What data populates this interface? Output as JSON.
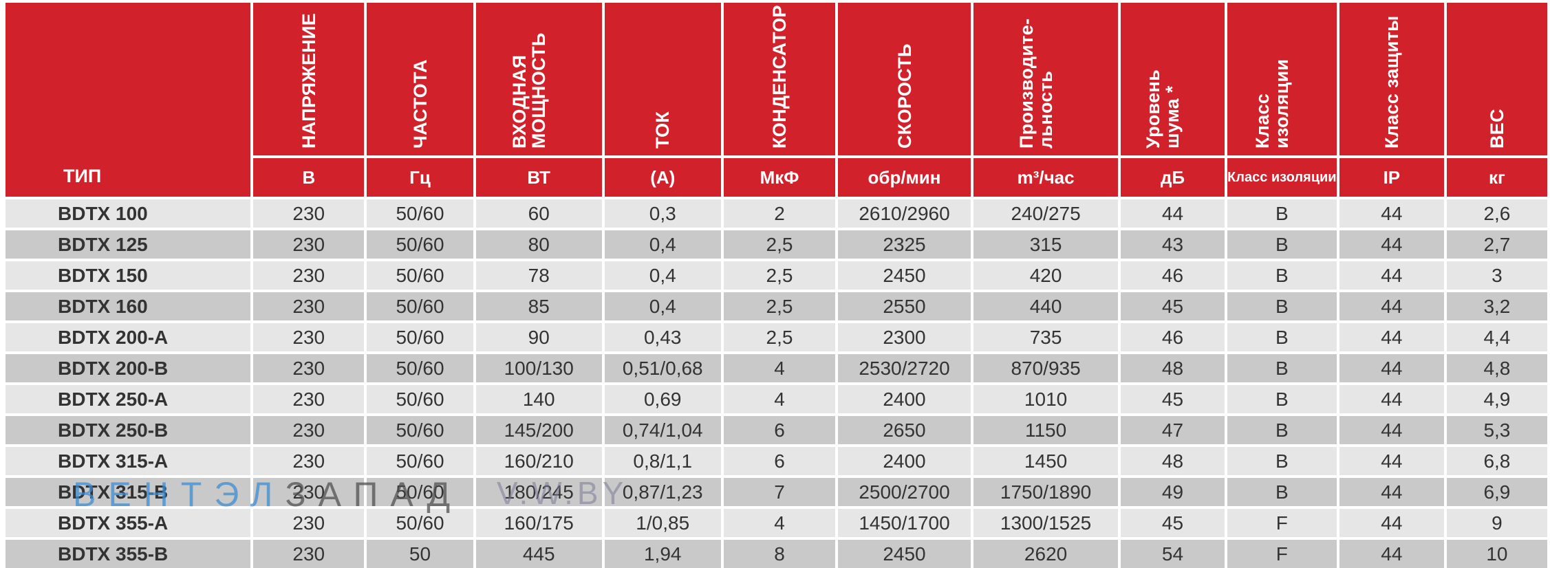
{
  "header": {
    "type_label": "ТИП",
    "columns": [
      {
        "title": "НАПРЯЖЕНИЕ",
        "unit": "В"
      },
      {
        "title": "ЧАСТОТА",
        "unit": "Гц"
      },
      {
        "title": "ВХОДНАЯ\nМОЩНОСТЬ",
        "unit": "ВТ"
      },
      {
        "title": "ТОК",
        "unit": "(А)"
      },
      {
        "title": "КОНДЕНСАТОР",
        "unit": "МкФ"
      },
      {
        "title": "СКОРОСТЬ",
        "unit": "обр/мин"
      },
      {
        "title": "Производите-\nльность",
        "unit": "m³/час"
      },
      {
        "title": "Уровень\nшума *",
        "unit": "дБ"
      },
      {
        "title": "Класс\nизоляции",
        "unit": "Класс изоляции"
      },
      {
        "title": "Класс защиты",
        "unit": "IP"
      },
      {
        "title": "ВЕС",
        "unit": "кг"
      }
    ]
  },
  "rows": [
    [
      "BDTX 100",
      "230",
      "50/60",
      "60",
      "0,3",
      "2",
      "2610/2960",
      "240/275",
      "44",
      "B",
      "44",
      "2,6"
    ],
    [
      "BDTX 125",
      "230",
      "50/60",
      "80",
      "0,4",
      "2,5",
      "2325",
      "315",
      "43",
      "B",
      "44",
      "2,7"
    ],
    [
      "BDTX 150",
      "230",
      "50/60",
      "78",
      "0,4",
      "2,5",
      "2450",
      "420",
      "46",
      "B",
      "44",
      "3"
    ],
    [
      "BDTX 160",
      "230",
      "50/60",
      "85",
      "0,4",
      "2,5",
      "2550",
      "440",
      "45",
      "B",
      "44",
      "3,2"
    ],
    [
      "BDTX 200-A",
      "230",
      "50/60",
      "90",
      "0,43",
      "2,5",
      "2300",
      "735",
      "46",
      "B",
      "44",
      "4,4"
    ],
    [
      "BDTX 200-B",
      "230",
      "50/60",
      "100/130",
      "0,51/0,68",
      "4",
      "2530/2720",
      "870/935",
      "48",
      "B",
      "44",
      "4,8"
    ],
    [
      "BDTX 250-A",
      "230",
      "50/60",
      "140",
      "0,69",
      "4",
      "2400",
      "1010",
      "45",
      "B",
      "44",
      "4,9"
    ],
    [
      "BDTX 250-B",
      "230",
      "50/60",
      "145/200",
      "0,74/1,04",
      "6",
      "2650",
      "1150",
      "47",
      "B",
      "44",
      "5,3"
    ],
    [
      "BDTX 315-A",
      "230",
      "50/60",
      "160/210",
      "0,8/1,1",
      "6",
      "2400",
      "1450",
      "48",
      "B",
      "44",
      "6,8"
    ],
    [
      "BDTX 315-B",
      "230",
      "50/60",
      "180/245",
      "0,87/1,23",
      "7",
      "2500/2700",
      "1750/1890",
      "49",
      "B",
      "44",
      "6,9"
    ],
    [
      "BDTX 355-A",
      "230",
      "50/60",
      "160/175",
      "1/0,85",
      "4",
      "1450/1700",
      "1300/1525",
      "45",
      "F",
      "44",
      "9"
    ],
    [
      "BDTX 355-B",
      "230",
      "50",
      "445",
      "1,94",
      "8",
      "2450",
      "2620",
      "54",
      "F",
      "44",
      "10"
    ]
  ],
  "watermark": {
    "part1": "ВЕНТЭЛ",
    "part2": "ЗАПАД",
    "part3": "V.W.BY"
  },
  "colors": {
    "header_bg": "#d1222b",
    "row_light": "#e6e6e6",
    "row_dark": "#c9c9c9"
  }
}
